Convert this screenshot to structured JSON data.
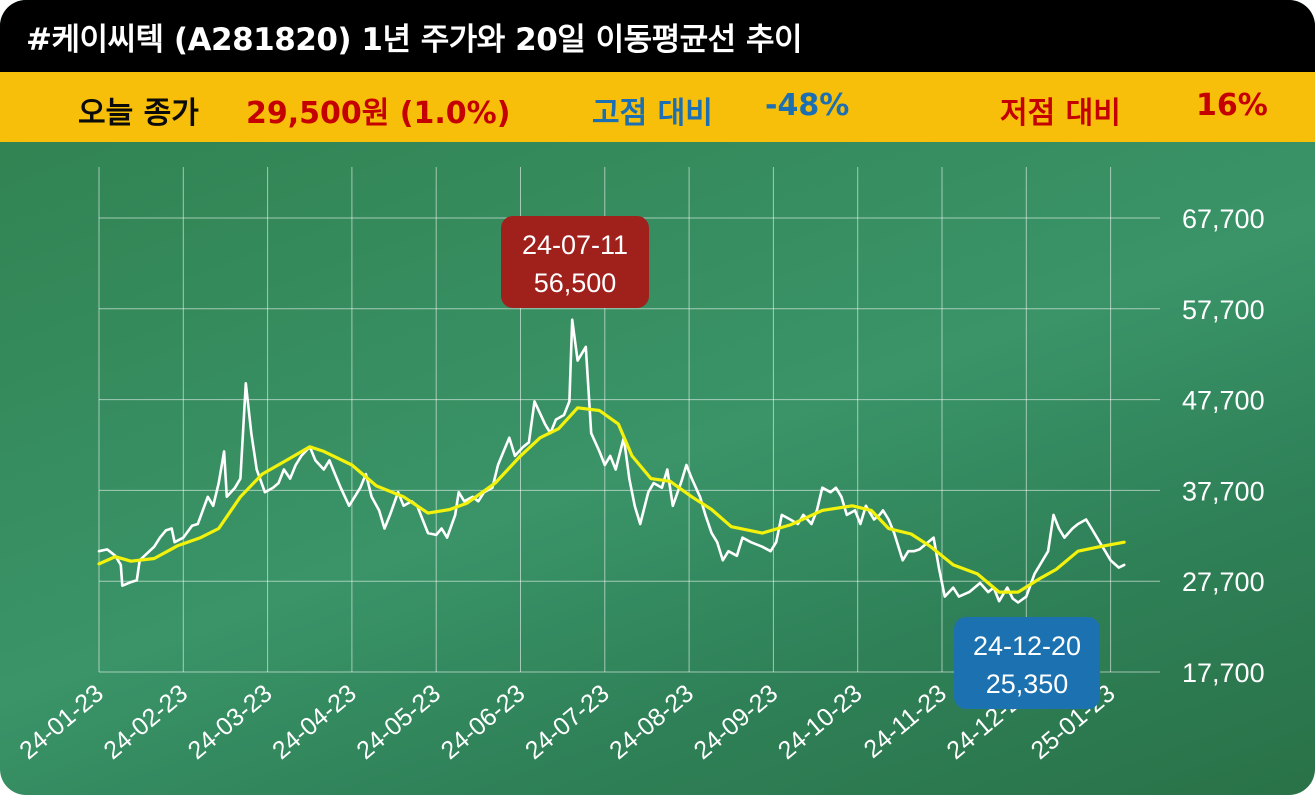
{
  "header": {
    "title": "#케이씨텍 (A281820) 1년 주가와 20일 이동평균선 추이"
  },
  "summary": {
    "close_label": "오늘 종가",
    "close_value": "29,500원 (1.0%)",
    "high_label": "고점 대비",
    "high_value": "-48%",
    "low_label": "저점 대비",
    "low_value": "16%"
  },
  "colors": {
    "title_bg": "#000000",
    "summary_bg": "#f7bf09",
    "price_line": "#ffffff",
    "ma_line": "#f2f20c",
    "high_callout": "#a0201c",
    "low_callout": "#1c72b0"
  },
  "chart_data": {
    "type": "line",
    "x_axis": "date",
    "x_tick_labels": [
      "24-01-23",
      "24-02-23",
      "24-03-23",
      "24-04-23",
      "24-05-23",
      "24-06-23",
      "24-07-23",
      "24-08-23",
      "24-09-23",
      "24-10-23",
      "24-11-23",
      "24-12-23",
      "25-01-23"
    ],
    "y_tick_labels": [
      "17,700",
      "27,700",
      "37,700",
      "47,700",
      "57,700",
      "67,700"
    ],
    "ylim": [
      17700,
      67700
    ],
    "grid": true,
    "series": [
      {
        "name": "",
        "color": "#ffffff",
        "points": [
          [
            "24-01-23",
            31000
          ],
          [
            "24-01-26",
            31200
          ],
          [
            "24-01-29",
            30500
          ],
          [
            "24-01-31",
            29500
          ],
          [
            "24-02-02",
            27200
          ],
          [
            "24-02-05",
            27600
          ],
          [
            "24-02-07",
            27800
          ],
          [
            "24-02-08",
            30000
          ],
          [
            "24-02-13",
            31500
          ],
          [
            "24-02-15",
            32500
          ],
          [
            "24-02-17",
            33300
          ],
          [
            "24-02-19",
            33500
          ],
          [
            "24-02-20",
            32000
          ],
          [
            "24-02-23",
            32500
          ],
          [
            "24-02-26",
            33800
          ],
          [
            "24-02-28",
            34000
          ],
          [
            "24-03-01",
            37000
          ],
          [
            "24-03-03",
            36000
          ],
          [
            "24-03-05",
            38500
          ],
          [
            "24-03-07",
            42000
          ],
          [
            "24-03-08",
            37000
          ],
          [
            "24-03-11",
            38000
          ],
          [
            "24-03-13",
            39000
          ],
          [
            "24-03-15",
            49500
          ],
          [
            "24-03-17",
            44000
          ],
          [
            "24-03-19",
            40000
          ],
          [
            "24-03-22",
            37500
          ],
          [
            "24-03-25",
            38000
          ],
          [
            "24-03-27",
            38500
          ],
          [
            "24-03-29",
            40000
          ],
          [
            "24-04-01",
            39000
          ],
          [
            "24-04-03",
            40500
          ],
          [
            "24-04-05",
            41500
          ],
          [
            "24-04-08",
            42500
          ],
          [
            "24-04-10",
            41000
          ],
          [
            "24-04-13",
            40000
          ],
          [
            "24-04-15",
            41000
          ],
          [
            "24-04-17",
            39500
          ],
          [
            "24-04-19",
            38000
          ],
          [
            "24-04-22",
            36000
          ],
          [
            "24-04-24",
            37000
          ],
          [
            "24-04-26",
            38000
          ],
          [
            "24-04-28",
            39500
          ],
          [
            "24-04-30",
            37000
          ],
          [
            "24-05-02",
            35500
          ],
          [
            "24-05-04",
            33500
          ],
          [
            "24-05-06",
            35000
          ],
          [
            "24-05-09",
            37500
          ],
          [
            "24-05-11",
            36000
          ],
          [
            "24-05-14",
            36500
          ],
          [
            "24-05-16",
            36000
          ],
          [
            "24-05-18",
            34500
          ],
          [
            "24-05-20",
            33000
          ],
          [
            "24-05-23",
            32800
          ],
          [
            "24-05-25",
            33500
          ],
          [
            "24-05-27",
            32500
          ],
          [
            "24-05-30",
            35000
          ],
          [
            "24-06-01",
            37500
          ],
          [
            "24-06-03",
            36500
          ],
          [
            "24-06-06",
            37000
          ],
          [
            "24-06-08",
            36500
          ],
          [
            "24-06-10",
            37500
          ],
          [
            "24-06-13",
            38000
          ],
          [
            "24-06-15",
            40500
          ],
          [
            "24-06-17",
            42000
          ],
          [
            "24-06-19",
            43500
          ],
          [
            "24-06-21",
            41500
          ],
          [
            "24-06-24",
            42500
          ],
          [
            "24-06-26",
            43000
          ],
          [
            "24-06-28",
            47500
          ],
          [
            "24-07-01",
            45000
          ],
          [
            "24-07-03",
            44000
          ],
          [
            "24-07-05",
            45500
          ],
          [
            "24-07-08",
            46000
          ],
          [
            "24-07-10",
            47500
          ],
          [
            "24-07-11",
            56500
          ],
          [
            "24-07-13",
            52000
          ],
          [
            "24-07-16",
            53500
          ],
          [
            "24-07-18",
            44000
          ],
          [
            "24-07-21",
            42000
          ],
          [
            "24-07-23",
            40500
          ],
          [
            "24-07-25",
            41500
          ],
          [
            "24-07-27",
            40000
          ],
          [
            "24-07-30",
            43500
          ],
          [
            "24-08-01",
            39000
          ],
          [
            "24-08-03",
            36000
          ],
          [
            "24-08-05",
            34000
          ],
          [
            "24-08-08",
            37500
          ],
          [
            "24-08-10",
            38500
          ],
          [
            "24-08-13",
            38000
          ],
          [
            "24-08-15",
            40000
          ],
          [
            "24-08-17",
            36000
          ],
          [
            "24-08-20",
            38500
          ],
          [
            "24-08-22",
            40500
          ],
          [
            "24-08-24",
            39000
          ],
          [
            "24-08-27",
            37000
          ],
          [
            "24-08-29",
            35000
          ],
          [
            "24-09-01",
            33000
          ],
          [
            "24-09-03",
            32000
          ],
          [
            "24-09-05",
            30000
          ],
          [
            "24-09-07",
            31000
          ],
          [
            "24-09-10",
            30500
          ],
          [
            "24-09-12",
            32500
          ],
          [
            "24-09-15",
            32000
          ],
          [
            "24-09-19",
            31500
          ],
          [
            "24-09-22",
            31000
          ],
          [
            "24-09-24",
            32000
          ],
          [
            "24-09-26",
            35000
          ],
          [
            "24-09-29",
            34500
          ],
          [
            "24-10-01",
            34000
          ],
          [
            "24-10-03",
            35000
          ],
          [
            "24-10-06",
            34000
          ],
          [
            "24-10-08",
            35500
          ],
          [
            "24-10-10",
            38000
          ],
          [
            "24-10-13",
            37500
          ],
          [
            "24-10-15",
            38000
          ],
          [
            "24-10-17",
            37000
          ],
          [
            "24-10-19",
            35000
          ],
          [
            "24-10-22",
            35500
          ],
          [
            "24-10-24",
            34000
          ],
          [
            "24-10-26",
            36000
          ],
          [
            "24-10-29",
            34500
          ],
          [
            "24-10-31",
            35000
          ],
          [
            "24-11-02",
            35500
          ],
          [
            "24-11-04",
            34500
          ],
          [
            "24-11-06",
            33000
          ],
          [
            "24-11-09",
            30000
          ],
          [
            "24-11-11",
            31000
          ],
          [
            "24-11-13",
            31000
          ],
          [
            "24-11-15",
            31200
          ],
          [
            "24-11-18",
            32000
          ],
          [
            "24-11-20",
            32500
          ],
          [
            "24-11-22",
            29000
          ],
          [
            "24-11-24",
            26000
          ],
          [
            "24-11-27",
            27000
          ],
          [
            "24-11-29",
            26000
          ],
          [
            "24-12-02",
            26500
          ],
          [
            "24-12-04",
            27000
          ],
          [
            "24-12-06",
            27500
          ],
          [
            "24-12-09",
            26500
          ],
          [
            "24-12-11",
            27000
          ],
          [
            "24-12-13",
            25500
          ],
          [
            "24-12-16",
            27000
          ],
          [
            "24-12-18",
            25800
          ],
          [
            "24-12-20",
            25350
          ],
          [
            "24-12-23",
            26000
          ],
          [
            "24-12-26",
            28500
          ],
          [
            "24-12-28",
            29500
          ],
          [
            "24-12-31",
            31000
          ],
          [
            "25-01-02",
            35000
          ],
          [
            "25-01-04",
            33500
          ],
          [
            "25-01-06",
            32500
          ],
          [
            "25-01-09",
            33500
          ],
          [
            "25-01-11",
            34000
          ],
          [
            "25-01-14",
            34500
          ],
          [
            "25-01-16",
            33500
          ],
          [
            "25-01-19",
            32000
          ],
          [
            "25-01-21",
            31000
          ],
          [
            "25-01-23",
            30000
          ],
          [
            "25-01-26",
            29200
          ],
          [
            "25-01-28",
            29500
          ]
        ]
      },
      {
        "name": "",
        "color": "#f2f20c",
        "points": [
          [
            "24-01-23",
            29600
          ],
          [
            "24-01-29",
            30400
          ],
          [
            "24-02-05",
            29900
          ],
          [
            "24-02-13",
            30200
          ],
          [
            "24-02-21",
            31600
          ],
          [
            "24-02-29",
            32500
          ],
          [
            "24-03-05",
            33500
          ],
          [
            "24-03-13",
            37000
          ],
          [
            "24-03-21",
            39500
          ],
          [
            "24-03-31",
            41200
          ],
          [
            "24-04-08",
            42500
          ],
          [
            "24-04-13",
            42000
          ],
          [
            "24-04-23",
            40500
          ],
          [
            "24-05-01",
            38200
          ],
          [
            "24-05-11",
            37000
          ],
          [
            "24-05-20",
            35200
          ],
          [
            "24-05-28",
            35600
          ],
          [
            "24-06-04",
            36300
          ],
          [
            "24-06-14",
            38500
          ],
          [
            "24-06-23",
            41500
          ],
          [
            "24-06-30",
            43500
          ],
          [
            "24-07-06",
            44500
          ],
          [
            "24-07-13",
            46800
          ],
          [
            "24-07-21",
            46500
          ],
          [
            "24-07-28",
            45000
          ],
          [
            "24-08-02",
            41500
          ],
          [
            "24-08-09",
            39000
          ],
          [
            "24-08-16",
            38700
          ],
          [
            "24-08-24",
            37000
          ],
          [
            "24-09-01",
            35600
          ],
          [
            "24-09-08",
            33700
          ],
          [
            "24-09-19",
            33000
          ],
          [
            "24-09-29",
            33900
          ],
          [
            "24-10-10",
            35500
          ],
          [
            "24-10-21",
            36000
          ],
          [
            "24-10-28",
            35500
          ],
          [
            "24-11-04",
            33500
          ],
          [
            "24-11-12",
            32900
          ],
          [
            "24-11-19",
            31500
          ],
          [
            "24-11-27",
            29500
          ],
          [
            "24-12-05",
            28500
          ],
          [
            "24-12-13",
            26500
          ],
          [
            "24-12-20",
            26500
          ],
          [
            "24-12-28",
            28000
          ],
          [
            "25-01-03",
            29000
          ],
          [
            "25-01-11",
            31000
          ],
          [
            "25-01-19",
            31500
          ],
          [
            "25-01-28",
            32000
          ]
        ]
      }
    ],
    "annotations": [
      {
        "kind": "high",
        "date": "24-07-11",
        "value": "56,500"
      },
      {
        "kind": "low",
        "date": "24-12-20",
        "value": "25,350"
      }
    ]
  }
}
